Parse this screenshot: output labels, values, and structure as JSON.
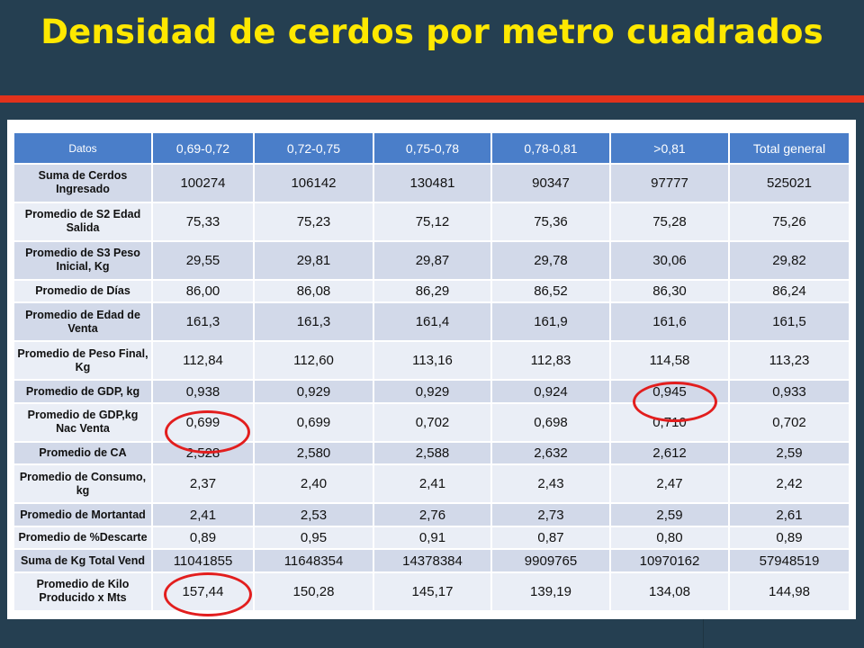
{
  "title": "Densidad de cerdos por metro cuadrados",
  "colors": {
    "background": "#253f51",
    "title": "#ffe800",
    "accent_bar": "#e2321c",
    "header": "#4a7ec9",
    "highlight_ring": "#e21e1e"
  },
  "table": {
    "headers": [
      "Datos",
      "0,69-0,72",
      "0,72-0,75",
      "0,75-0,78",
      "0,78-0,81",
      ">0,81",
      "Total general"
    ],
    "rows": [
      {
        "label": "Suma de Cerdos Ingresado",
        "values": [
          "100274",
          "106142",
          "130481",
          "90347",
          "97777",
          "525021"
        ]
      },
      {
        "label": "Promedio de  S2 Edad Salida",
        "values": [
          "75,33",
          "75,23",
          "75,12",
          "75,36",
          "75,28",
          "75,26"
        ]
      },
      {
        "label": "Promedio de S3 Peso Inicial, Kg",
        "values": [
          "29,55",
          "29,81",
          "29,87",
          "29,78",
          "30,06",
          "29,82"
        ]
      },
      {
        "label": "Promedio de Días",
        "values": [
          "86,00",
          "86,08",
          "86,29",
          "86,52",
          "86,30",
          "86,24"
        ]
      },
      {
        "label": "Promedio de Edad de Venta",
        "values": [
          "161,3",
          "161,3",
          "161,4",
          "161,9",
          "161,6",
          "161,5"
        ]
      },
      {
        "label": "Promedio de Peso Final, Kg",
        "values": [
          "112,84",
          "112,60",
          "113,16",
          "112,83",
          "114,58",
          "113,23"
        ]
      },
      {
        "label": "Promedio de GDP, kg",
        "values": [
          "0,938",
          "0,929",
          "0,929",
          "0,924",
          "0,945",
          "0,933"
        ]
      },
      {
        "label": "Promedio de GDP,kg Nac Venta",
        "values": [
          "0,699",
          "0,699",
          "0,702",
          "0,698",
          "0,710",
          "0,702"
        ]
      },
      {
        "label": "Promedio de CA",
        "values": [
          "2,528",
          "2,580",
          "2,588",
          "2,632",
          "2,612",
          "2,59"
        ]
      },
      {
        "label": "Promedio de Consumo, kg",
        "values": [
          "2,37",
          "2,40",
          "2,41",
          "2,43",
          "2,47",
          "2,42"
        ]
      },
      {
        "label": "Promedio de Mortantad",
        "values": [
          "2,41",
          "2,53",
          "2,76",
          "2,73",
          "2,59",
          "2,61"
        ]
      },
      {
        "label": "Promedio de %Descarte",
        "values": [
          "0,89",
          "0,95",
          "0,91",
          "0,87",
          "0,80",
          "0,89"
        ]
      },
      {
        "label": "Suma de Kg Total Vend",
        "values": [
          "11041855",
          "11648354",
          "14378384",
          "9909765",
          "10970162",
          "57948519"
        ]
      },
      {
        "label": "Promedio de Kilo Producido x Mts",
        "values": [
          "157,44",
          "150,28",
          "145,17",
          "139,19",
          "134,08",
          "144,98"
        ]
      }
    ]
  }
}
